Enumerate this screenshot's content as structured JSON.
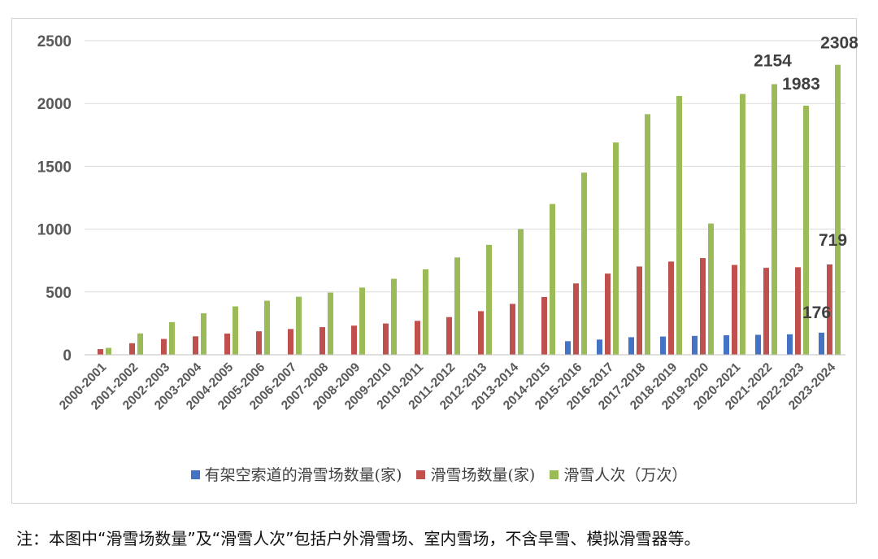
{
  "chart_data": {
    "type": "bar",
    "title": "",
    "xlabel": "",
    "ylabel": "",
    "ylim": [
      0,
      2500
    ],
    "yticks": [
      "0",
      "500",
      "1000",
      "1500",
      "2000",
      "2500"
    ],
    "grid": true,
    "legend_position": "bottom",
    "categories": [
      "2000-2001",
      "2001-2002",
      "2002-2003",
      "2003-2004",
      "2004-2005",
      "2005-2006",
      "2006-2007",
      "2007-2008",
      "2008-2009",
      "2009-2010",
      "2010-2011",
      "2011-2012",
      "2012-2013",
      "2013-2014",
      "2014-2015",
      "2015-2016",
      "2016-2017",
      "2017-2018",
      "2018-2019",
      "2019-2020",
      "2020-2021",
      "2021-2022",
      "2022-2023",
      "2023-2024"
    ],
    "series": [
      {
        "name": "有架空索道的滑雪场数量(家)",
        "color": "#4472C4",
        "values": [
          null,
          null,
          null,
          null,
          null,
          null,
          null,
          null,
          null,
          null,
          null,
          null,
          null,
          null,
          null,
          108,
          121,
          140,
          145,
          150,
          155,
          159,
          163,
          176
        ]
      },
      {
        "name": "滑雪场数量(家)",
        "color": "#C0504D",
        "values": [
          45,
          92,
          126,
          147,
          169,
          187,
          205,
          220,
          232,
          249,
          270,
          300,
          347,
          405,
          460,
          568,
          646,
          703,
          742,
          770,
          715,
          692,
          697,
          719
        ]
      },
      {
        "name": "滑雪人次（万次）",
        "color": "#9BBB59",
        "values": [
          55,
          170,
          260,
          330,
          385,
          430,
          462,
          495,
          535,
          605,
          680,
          775,
          875,
          1000,
          1200,
          1450,
          1690,
          1915,
          2060,
          1045,
          2076,
          2154,
          1983,
          2308
        ]
      }
    ],
    "data_labels": [
      {
        "series": 2,
        "index": 21,
        "text": "2154"
      },
      {
        "series": 2,
        "index": 22,
        "text": "1983"
      },
      {
        "series": 2,
        "index": 23,
        "text": "2308"
      },
      {
        "series": 1,
        "index": 23,
        "text": "719"
      },
      {
        "series": 0,
        "index": 23,
        "text": "176"
      }
    ]
  },
  "legend": [
    {
      "label": "有架空索道的滑雪场数量(家)",
      "color": "#4472C4"
    },
    {
      "label": "滑雪场数量(家)",
      "color": "#C0504D"
    },
    {
      "label": "滑雪人次（万次）",
      "color": "#9BBB59"
    }
  ],
  "footnote": "注：本图中“滑雪场数量”及“滑雪人次”包括户外滑雪场、室内雪场，不含旱雪、模拟滑雪器等。"
}
